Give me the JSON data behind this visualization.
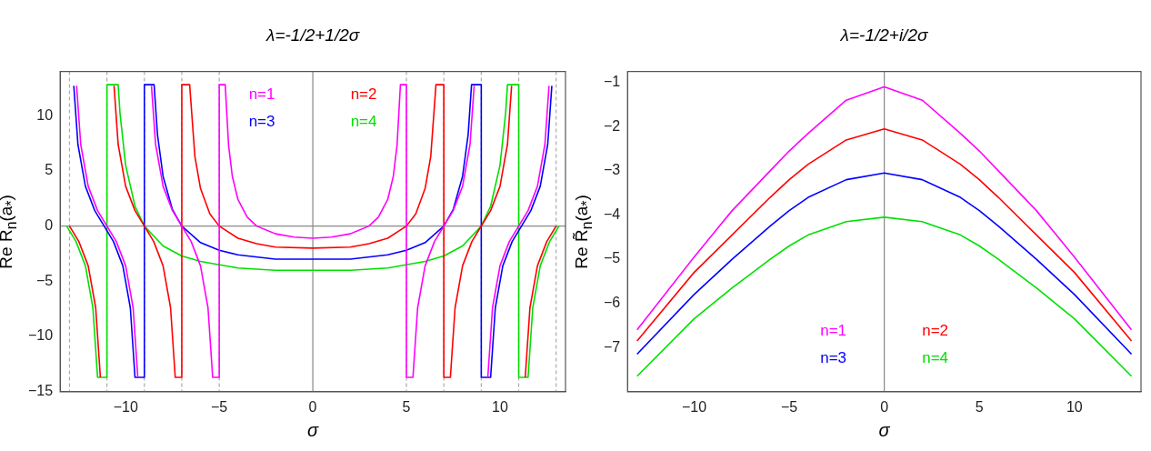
{
  "chart_data": [
    {
      "type": "line",
      "title": "λ=-1/2+1/2σ",
      "xlabel": "σ",
      "ylabel": "Re R$_{n}$(a$_{*}$)",
      "xlim": [
        -13.5,
        13.5
      ],
      "ylim": [
        -15,
        14
      ],
      "xticks": [
        -10,
        -5,
        0,
        5,
        10
      ],
      "yticks": [
        -15,
        -10,
        -5,
        0,
        5,
        10
      ],
      "grid": false,
      "legend": "top",
      "series": [
        {
          "name": "n=1",
          "color": "#ff00ff",
          "x": [
            -12.62,
            -12.4,
            -12,
            -11.5,
            -11,
            -10.5,
            -10,
            -9.6,
            -9.35,
            -9.2,
            -8.62,
            -8.4,
            -8,
            -7.5,
            -7,
            -6.5,
            -6,
            -5.6,
            -5.35,
            -5,
            -5,
            -4.68,
            -4.5,
            -4.3,
            -4,
            -3.5,
            -3,
            -2,
            -1,
            0,
            1,
            2,
            3,
            3.5,
            4,
            4.3,
            4.5,
            4.68,
            5,
            5,
            5.35,
            5.6,
            6,
            6.5,
            7,
            7.5,
            8,
            8.4,
            8.62,
            9.2,
            9.35,
            9.6,
            10,
            10.5,
            11,
            11.5,
            12,
            12.4,
            12.62
          ],
          "values": [
            12.7,
            7.4,
            3.6,
            1.4,
            0,
            -1.4,
            -3.6,
            -7.4,
            -13.7,
            null,
            12.7,
            7.4,
            3.6,
            1.4,
            0,
            -1.4,
            -3.6,
            -7.4,
            -13.7,
            -13.7,
            12.8,
            12.8,
            7.3,
            4.5,
            2.4,
            0.8,
            0,
            -0.7,
            -1,
            -1.1,
            -1,
            -0.7,
            0,
            0.8,
            2.4,
            4.5,
            7.3,
            12.8,
            12.8,
            -13.7,
            -13.7,
            -7.4,
            -3.6,
            -1.4,
            0,
            1.4,
            3.6,
            7.4,
            12.7,
            null,
            -13.7,
            -7.4,
            -3.6,
            -1.4,
            0,
            1.4,
            3.6,
            7.4,
            12.7
          ]
        },
        {
          "name": "n=2",
          "color": "#ff0000",
          "x": [
            -13,
            -12.5,
            -12,
            -11.6,
            -11.35,
            -11.2,
            -10.62,
            -10.4,
            -10,
            -9.5,
            -9,
            -8.5,
            -8,
            -7.6,
            -7.35,
            -7,
            -7,
            -6.58,
            -6.3,
            -6,
            -5.5,
            -5,
            -4,
            -3,
            -2,
            0,
            2,
            3,
            4,
            5,
            5.5,
            6,
            6.3,
            6.58,
            7,
            7,
            7.35,
            7.6,
            8,
            8.5,
            9,
            9.5,
            10,
            10.4,
            10.62,
            11.2,
            11.35,
            11.6,
            12,
            12.5,
            13
          ],
          "values": [
            0,
            -1.4,
            -3.6,
            -7.4,
            -13.7,
            null,
            12.7,
            7.4,
            3.6,
            1.4,
            0,
            -1.4,
            -3.6,
            -7.4,
            -13.7,
            -13.7,
            12.8,
            12.8,
            6.3,
            3.4,
            1.1,
            0,
            -1.1,
            -1.6,
            -1.9,
            -2,
            -1.9,
            -1.6,
            -1.1,
            0,
            1.1,
            3.4,
            6.3,
            12.8,
            12.8,
            -13.7,
            -13.7,
            -7.4,
            -3.6,
            -1.4,
            0,
            1.4,
            3.6,
            7.4,
            12.7,
            null,
            -13.7,
            -7.4,
            -3.6,
            -1.4,
            0
          ]
        },
        {
          "name": "n=3",
          "color": "#0000ff",
          "x": [
            -12.77,
            -12.55,
            -12.15,
            -11.65,
            -11.15,
            -10.65,
            -10.15,
            -9.75,
            -9.5,
            -9,
            -9,
            -8.48,
            -8.3,
            -8,
            -7.5,
            -7,
            -6,
            -5,
            -4,
            -2,
            0,
            2,
            4,
            5,
            6,
            7,
            7.5,
            8,
            8.3,
            8.48,
            9,
            9,
            9.5,
            9.75,
            10.15,
            10.65,
            11.15,
            11.65,
            12.15,
            12.55,
            12.77
          ],
          "values": [
            12.7,
            7.4,
            3.6,
            1.4,
            0,
            -1.4,
            -3.6,
            -7.4,
            -13.7,
            -13.7,
            12.8,
            12.8,
            8.3,
            4.5,
            1.5,
            0,
            -1.5,
            -2.2,
            -2.6,
            -3,
            -3,
            -3,
            -2.6,
            -2.2,
            -1.5,
            0,
            1.5,
            4.5,
            8.3,
            12.8,
            12.8,
            -13.7,
            -13.7,
            -7.4,
            -3.6,
            -1.4,
            0,
            1.4,
            3.6,
            7.4,
            12.7
          ]
        },
        {
          "name": "n=4",
          "color": "#00e000",
          "x": [
            -13.15,
            -12.65,
            -12.15,
            -11.75,
            -11.5,
            -11,
            -11,
            -10.4,
            -10.3,
            -10,
            -9.5,
            -9,
            -8,
            -7,
            -6,
            -4,
            -2,
            0,
            2,
            4,
            6,
            7,
            8,
            9,
            9.5,
            10,
            10.3,
            10.4,
            11,
            11,
            11.5,
            11.75,
            12.15,
            12.65,
            13.15
          ],
          "values": [
            0,
            -1.4,
            -3.6,
            -7.4,
            -13.7,
            -13.7,
            12.8,
            12.8,
            10.2,
            5.5,
            1.8,
            0,
            -1.8,
            -2.7,
            -3.2,
            -3.8,
            -4,
            -4,
            -4,
            -3.8,
            -3.2,
            -2.7,
            -1.8,
            0,
            1.8,
            5.5,
            10.2,
            12.8,
            12.8,
            -13.7,
            -13.7,
            -7.4,
            -3.6,
            -1.4,
            0
          ]
        }
      ],
      "ref_lines": [
        {
          "axis": "x",
          "value": -13,
          "color": "#aaaaaa",
          "line_style": "dashed"
        },
        {
          "axis": "x",
          "value": -11,
          "color": "#aaaaaa",
          "line_style": "dashed"
        },
        {
          "axis": "x",
          "value": -9,
          "color": "#aaaaaa",
          "line_style": "dashed"
        },
        {
          "axis": "x",
          "value": -7,
          "color": "#aaaaaa",
          "line_style": "dashed"
        },
        {
          "axis": "x",
          "value": -5,
          "color": "#aaaaaa",
          "line_style": "dashed"
        },
        {
          "axis": "x",
          "value": 5,
          "color": "#aaaaaa",
          "line_style": "dashed"
        },
        {
          "axis": "x",
          "value": 7,
          "color": "#aaaaaa",
          "line_style": "dashed"
        },
        {
          "axis": "x",
          "value": 9,
          "color": "#aaaaaa",
          "line_style": "dashed"
        },
        {
          "axis": "x",
          "value": 11,
          "color": "#aaaaaa",
          "line_style": "dashed"
        },
        {
          "axis": "x",
          "value": 13,
          "color": "#aaaaaa",
          "line_style": "dashed"
        },
        {
          "axis": "x",
          "value": 0,
          "color": "#888888",
          "line_style": "solid"
        },
        {
          "axis": "y",
          "value": 0,
          "color": "#888888",
          "line_style": "solid"
        }
      ]
    },
    {
      "type": "line",
      "title": "λ=-1/2+i/2σ",
      "xlabel": "σ",
      "ylabel": "Re R̃$_{n}$(a$_{*}$)",
      "xlim": [
        -13.5,
        13.5
      ],
      "ylim": [
        -8,
        -0.75
      ],
      "xticks": [
        -10,
        -5,
        0,
        5,
        10
      ],
      "yticks": [
        -7,
        -6,
        -5,
        -4,
        -3,
        -2,
        -1
      ],
      "grid": false,
      "legend": "bottom",
      "series": [
        {
          "name": "n=1",
          "color": "#ff00ff",
          "x": [
            -13,
            -10,
            -8,
            -6,
            -5,
            -4,
            -2,
            0,
            2,
            4,
            5,
            6,
            8,
            10,
            13
          ],
          "values": [
            -6.6,
            -4.95,
            -3.9,
            -3.0,
            -2.55,
            -2.15,
            -1.4,
            -1.1,
            -1.4,
            -2.15,
            -2.55,
            -3.0,
            -3.9,
            -4.95,
            -6.6
          ]
        },
        {
          "name": "n=2",
          "color": "#ff0000",
          "x": [
            -13,
            -10,
            -8,
            -6,
            -5,
            -4,
            -2,
            0,
            2,
            4,
            5,
            6,
            8,
            10,
            13
          ],
          "values": [
            -6.85,
            -5.3,
            -4.45,
            -3.6,
            -3.2,
            -2.85,
            -2.3,
            -2.05,
            -2.3,
            -2.85,
            -3.2,
            -3.6,
            -4.45,
            -5.3,
            -6.85
          ]
        },
        {
          "name": "n=3",
          "color": "#0000ff",
          "x": [
            -13,
            -10,
            -8,
            -6,
            -5,
            -4,
            -2,
            0,
            2,
            4,
            5,
            6,
            8,
            10,
            13
          ],
          "values": [
            -7.15,
            -5.8,
            -5.0,
            -4.25,
            -3.9,
            -3.6,
            -3.2,
            -3.05,
            -3.2,
            -3.6,
            -3.9,
            -4.25,
            -5.0,
            -5.8,
            -7.15
          ]
        },
        {
          "name": "n=4",
          "color": "#00e000",
          "x": [
            -13,
            -10,
            -8,
            -6,
            -5,
            -4,
            -2,
            0,
            2,
            4,
            5,
            6,
            8,
            10,
            13
          ],
          "values": [
            -7.65,
            -6.35,
            -5.65,
            -5.0,
            -4.7,
            -4.45,
            -4.15,
            -4.05,
            -4.15,
            -4.45,
            -4.7,
            -5.0,
            -5.65,
            -6.35,
            -7.65
          ]
        }
      ],
      "ref_lines": [
        {
          "axis": "x",
          "value": 0,
          "color": "#888888",
          "line_style": "solid"
        }
      ]
    }
  ]
}
